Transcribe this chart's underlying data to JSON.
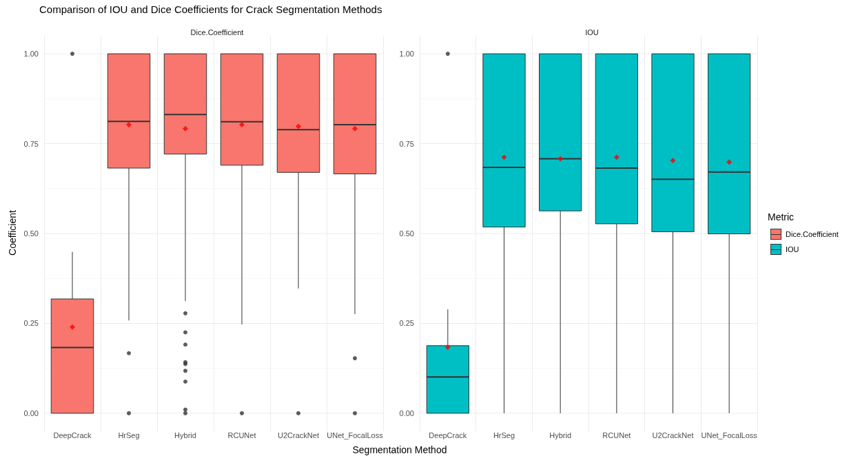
{
  "chart_data": [
    {
      "type": "box",
      "title": "Comparison of IOU and Dice Coefficients for Crack Segmentation Methods",
      "subtitle": "Dice.Coefficient",
      "ylabel": "Coefficient",
      "xlabel": "Segmentation Method",
      "categories": [
        "DeepCrack",
        "HrSeg",
        "Hybrid",
        "RCUNet",
        "U2CrackNet",
        "UNet_FocalLoss"
      ],
      "ylim": [
        -0.05,
        1.05
      ],
      "yticks": [
        {
          "value": 0,
          "label": "0.00"
        },
        {
          "value": 0.25,
          "label": "0.25"
        },
        {
          "value": 0.5,
          "label": "0.50"
        },
        {
          "value": 0.75,
          "label": "0.75"
        },
        {
          "value": 1,
          "label": "1.00"
        }
      ],
      "grid": true,
      "series": [
        {
          "name": "Dice.Coefficient",
          "color": "#f8766d",
          "boxes": [
            {
              "low": 0,
              "q1": 0,
              "median": 0.183,
              "q3": 0.318,
              "high": 0.449,
              "mean": 0.24,
              "outliers": [
                1
              ]
            },
            {
              "low": 0.258,
              "q1": 0.682,
              "median": 0.812,
              "q3": 1,
              "high": 1,
              "mean": 0.803,
              "outliers": [
                0.167,
                0
              ]
            },
            {
              "low": 0.312,
              "q1": 0.721,
              "median": 0.831,
              "q3": 1,
              "high": 1,
              "mean": 0.792,
              "outliers": [
                0.278,
                0.225,
                0.191,
                0.142,
                0.137,
                0.118,
                0.088,
                0.01,
                0
              ]
            },
            {
              "low": 0.247,
              "q1": 0.69,
              "median": 0.811,
              "q3": 1,
              "high": 1,
              "mean": 0.803,
              "outliers": [
                0
              ]
            },
            {
              "low": 0.347,
              "q1": 0.67,
              "median": 0.789,
              "q3": 1,
              "high": 1,
              "mean": 0.798,
              "outliers": [
                0
              ]
            },
            {
              "low": 0.276,
              "q1": 0.666,
              "median": 0.803,
              "q3": 1,
              "high": 1,
              "mean": 0.792,
              "outliers": [
                0.153,
                0
              ]
            }
          ]
        }
      ]
    },
    {
      "type": "box",
      "subtitle": "IOU",
      "legend_title": "Metric",
      "legend": "right",
      "categories": [
        "DeepCrack",
        "HrSeg",
        "Hybrid",
        "RCUNet",
        "U2CrackNet",
        "UNet_FocalLoss"
      ],
      "ylim": [
        -0.05,
        1.05
      ],
      "yticks": [
        {
          "value": 0,
          "label": "0.00"
        },
        {
          "value": 0.25,
          "label": "0.25"
        },
        {
          "value": 0.5,
          "label": "0.50"
        },
        {
          "value": 0.75,
          "label": "0.75"
        },
        {
          "value": 1,
          "label": "1.00"
        }
      ],
      "grid": true,
      "series": [
        {
          "name": "IOU",
          "color": "#00bfc4",
          "boxes": [
            {
              "low": 0,
              "q1": 0,
              "median": 0.101,
              "q3": 0.188,
              "high": 0.289,
              "mean": 0.184,
              "outliers": [
                1
              ]
            },
            {
              "low": 0,
              "q1": 0.518,
              "median": 0.684,
              "q3": 1,
              "high": 1,
              "mean": 0.712
            },
            {
              "low": 0,
              "q1": 0.563,
              "median": 0.708,
              "q3": 1,
              "high": 1,
              "mean": 0.708
            },
            {
              "low": 0,
              "q1": 0.527,
              "median": 0.682,
              "q3": 1,
              "high": 1,
              "mean": 0.712
            },
            {
              "low": 0,
              "q1": 0.505,
              "median": 0.651,
              "q3": 1,
              "high": 1,
              "mean": 0.703
            },
            {
              "low": 0,
              "q1": 0.499,
              "median": 0.671,
              "q3": 1,
              "high": 1,
              "mean": 0.699
            }
          ]
        }
      ]
    }
  ]
}
